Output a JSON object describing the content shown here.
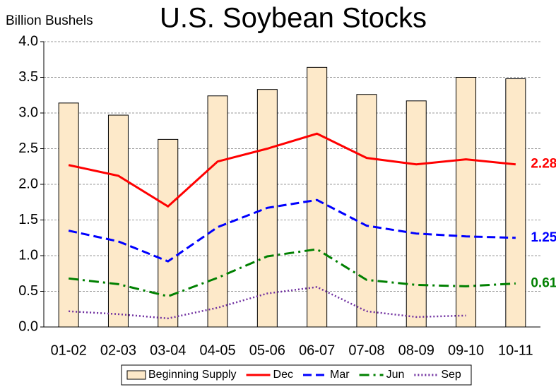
{
  "chart_data": {
    "type": "bar",
    "title": "U.S. Soybean Stocks",
    "y_label": "Billion Bushels",
    "categories": [
      "01-02",
      "02-03",
      "03-04",
      "04-05",
      "05-06",
      "06-07",
      "07-08",
      "08-09",
      "09-10",
      "10-11"
    ],
    "ylim": [
      0,
      4
    ],
    "yticks": [
      {
        "value": 0,
        "label": "0.0"
      },
      0.5,
      {
        "value": 1,
        "label": "1.0"
      },
      1.5,
      {
        "value": 2,
        "label": "2.0"
      },
      2.5,
      {
        "value": 3,
        "label": "3.0"
      },
      3.5,
      {
        "value": 4,
        "label": "4.0"
      }
    ],
    "grid": true,
    "legend": "bottom",
    "series": [
      {
        "name": "Beginning Supply",
        "type": "bar",
        "color": "#fde9c9",
        "values": [
          3.14,
          2.97,
          2.63,
          3.24,
          3.33,
          3.64,
          3.26,
          3.17,
          3.5,
          3.48
        ]
      },
      {
        "name": "Dec",
        "type": "line",
        "style": "solid",
        "color": "#ff0000",
        "label_last": true,
        "values": [
          2.27,
          2.12,
          1.69,
          2.32,
          2.5,
          2.71,
          2.37,
          2.28,
          2.35,
          2.28
        ]
      },
      {
        "name": "Mar",
        "type": "line",
        "style": "dashed",
        "color": "#0000ff",
        "label_last": true,
        "values": [
          1.35,
          1.2,
          0.92,
          1.4,
          1.67,
          1.78,
          1.42,
          1.31,
          1.27,
          1.25
        ]
      },
      {
        "name": "Jun",
        "type": "line",
        "style": "dashdot",
        "color": "#008000",
        "label_last": true,
        "values": [
          0.68,
          0.6,
          0.43,
          0.69,
          0.99,
          1.09,
          0.66,
          0.59,
          0.57,
          0.61
        ]
      },
      {
        "name": "Sep",
        "type": "line",
        "style": "dotted",
        "color": "#7030a0",
        "values": [
          0.22,
          0.18,
          0.12,
          0.27,
          0.47,
          0.56,
          0.22,
          0.14,
          0.16,
          null
        ]
      }
    ]
  }
}
